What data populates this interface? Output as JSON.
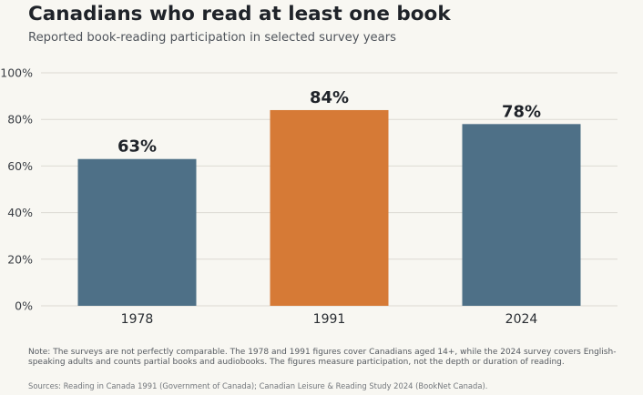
{
  "header": {
    "title": "Canadians who read at least one book",
    "subtitle": "Reported book-reading participation in selected survey years"
  },
  "chart_data": {
    "type": "bar",
    "categories": [
      "1978",
      "1991",
      "2024"
    ],
    "values": [
      63,
      84,
      78
    ],
    "data_labels": [
      "63%",
      "84%",
      "78%"
    ],
    "bar_colors": [
      "#4e7087",
      "#d67a36",
      "#4e7087"
    ],
    "yticks": [
      0,
      20,
      40,
      60,
      80,
      100
    ],
    "ytick_labels": [
      "0%",
      "20%",
      "40%",
      "60%",
      "80%",
      "100%"
    ],
    "ylim": [
      0,
      100
    ],
    "grid": true,
    "xlabel": "",
    "ylabel": ""
  },
  "footer": {
    "note": "Note: The surveys are not perfectly comparable. The 1978 and 1991 figures cover Canadians aged 14+, while the 2024 survey covers English-speaking adults and counts partial books and audiobooks. The figures measure participation, not the depth or duration of reading.",
    "sources": "Sources: Reading in Canada 1991 (Government of Canada); Canadian Leisure & Reading Study 2024 (BookNet Canada)."
  }
}
